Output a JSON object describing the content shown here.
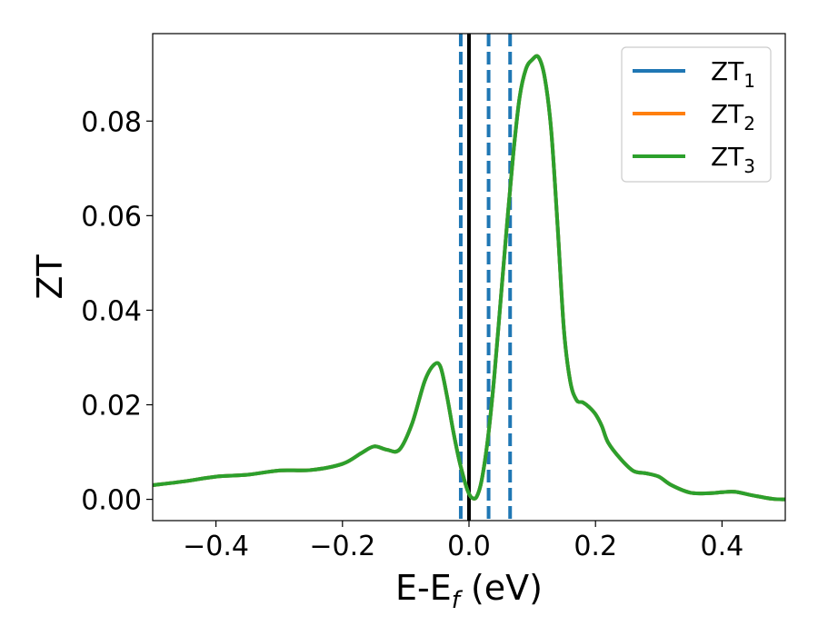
{
  "chart_data": {
    "type": "line",
    "xlabel": {
      "base": "E-E",
      "sub": "f",
      "unit": " (eV)"
    },
    "ylabel": "ZT",
    "xlim": [
      -0.5,
      0.5
    ],
    "ylim": [
      -0.0045,
      0.0985
    ],
    "xticks": [
      -0.4,
      -0.2,
      0.0,
      0.2,
      0.4
    ],
    "xtick_labels": [
      "−0.4",
      "−0.2",
      "0.0",
      "0.2",
      "0.4"
    ],
    "yticks": [
      0.0,
      0.02,
      0.04,
      0.06,
      0.08
    ],
    "ytick_labels": [
      "0.00",
      "0.02",
      "0.04",
      "0.06",
      "0.08"
    ],
    "grid": false,
    "legend_position": "top-right",
    "vertical_lines": [
      {
        "x": -0.013,
        "style": "dashed",
        "color": "#1f77b4"
      },
      {
        "x": 0.0,
        "style": "solid",
        "color": "#000000"
      },
      {
        "x": 0.031,
        "style": "dashed",
        "color": "#1f77b4"
      },
      {
        "x": 0.065,
        "style": "dashed",
        "color": "#1f77b4"
      }
    ],
    "x": [
      -0.5,
      -0.45,
      -0.4,
      -0.35,
      -0.3,
      -0.25,
      -0.2,
      -0.17,
      -0.15,
      -0.13,
      -0.11,
      -0.09,
      -0.07,
      -0.055,
      -0.045,
      -0.035,
      -0.025,
      -0.015,
      -0.005,
      0.0,
      0.005,
      0.012,
      0.02,
      0.03,
      0.04,
      0.05,
      0.06,
      0.07,
      0.08,
      0.09,
      0.1,
      0.11,
      0.12,
      0.13,
      0.14,
      0.15,
      0.16,
      0.17,
      0.18,
      0.19,
      0.2,
      0.21,
      0.22,
      0.24,
      0.26,
      0.28,
      0.3,
      0.32,
      0.35,
      0.38,
      0.4,
      0.42,
      0.45,
      0.48,
      0.5
    ],
    "series": [
      {
        "name": "ZT",
        "sub": "1",
        "color": "#1f77b4",
        "values": [
          0.003,
          0.0038,
          0.0048,
          0.0052,
          0.0061,
          0.0062,
          0.0075,
          0.0098,
          0.0112,
          0.0105,
          0.0105,
          0.016,
          0.025,
          0.0285,
          0.028,
          0.022,
          0.0145,
          0.008,
          0.003,
          0.0012,
          0.0003,
          0.0005,
          0.004,
          0.013,
          0.026,
          0.042,
          0.058,
          0.073,
          0.085,
          0.091,
          0.093,
          0.0935,
          0.089,
          0.078,
          0.058,
          0.036,
          0.025,
          0.021,
          0.0205,
          0.0195,
          0.018,
          0.0155,
          0.012,
          0.0085,
          0.006,
          0.0055,
          0.0048,
          0.003,
          0.0014,
          0.0013,
          0.0015,
          0.0016,
          0.0008,
          0.0001,
          0.0
        ]
      },
      {
        "name": "ZT",
        "sub": "2",
        "color": "#ff7f0e",
        "values": [
          0.003,
          0.0038,
          0.0048,
          0.0052,
          0.0061,
          0.0062,
          0.0075,
          0.0098,
          0.0112,
          0.0105,
          0.0105,
          0.016,
          0.025,
          0.0285,
          0.028,
          0.022,
          0.0145,
          0.008,
          0.003,
          0.0012,
          0.0003,
          0.0005,
          0.004,
          0.013,
          0.026,
          0.042,
          0.058,
          0.073,
          0.085,
          0.091,
          0.093,
          0.0935,
          0.089,
          0.078,
          0.058,
          0.036,
          0.025,
          0.021,
          0.0205,
          0.0195,
          0.018,
          0.0155,
          0.012,
          0.0085,
          0.006,
          0.0055,
          0.0048,
          0.003,
          0.0014,
          0.0013,
          0.0015,
          0.0016,
          0.0008,
          0.0001,
          0.0
        ]
      },
      {
        "name": "ZT",
        "sub": "3",
        "color": "#2ca02c",
        "values": [
          0.003,
          0.0038,
          0.0048,
          0.0052,
          0.0061,
          0.0062,
          0.0075,
          0.0098,
          0.0112,
          0.0105,
          0.0105,
          0.016,
          0.025,
          0.0285,
          0.028,
          0.022,
          0.0145,
          0.008,
          0.003,
          0.0012,
          0.0003,
          0.0005,
          0.004,
          0.013,
          0.026,
          0.042,
          0.058,
          0.073,
          0.085,
          0.091,
          0.093,
          0.0935,
          0.089,
          0.078,
          0.058,
          0.036,
          0.025,
          0.021,
          0.0205,
          0.0195,
          0.018,
          0.0155,
          0.012,
          0.0085,
          0.006,
          0.0055,
          0.0048,
          0.003,
          0.0014,
          0.0013,
          0.0015,
          0.0016,
          0.0008,
          0.0001,
          0.0
        ]
      }
    ]
  }
}
